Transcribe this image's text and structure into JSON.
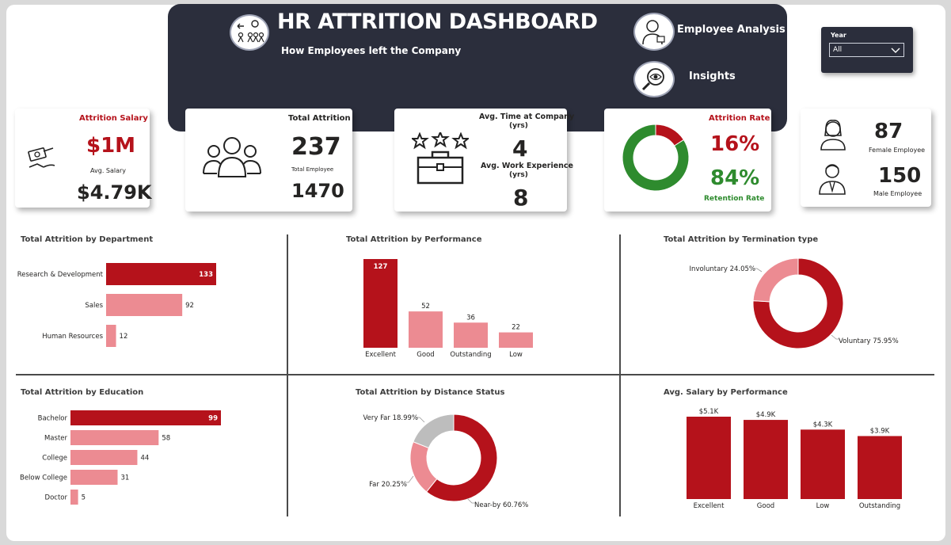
{
  "header": {
    "title": "HR ATTRITION DASHBOARD",
    "subtitle": "How  Employees left the Company",
    "nav_employee_analysis": "Employee Analysis",
    "nav_insights": "Insights"
  },
  "slicer": {
    "label": "Year",
    "value": "All"
  },
  "kpis": {
    "attrition_salary_label": "Attrition Salary",
    "attrition_salary_value": "$1M",
    "avg_salary_label": "Avg. Salary",
    "avg_salary_value": "$4.79K",
    "total_attrition_label": "Total Attrition",
    "total_attrition_value": "237",
    "total_employee_label": "Total Employee",
    "total_employee_value": "1470",
    "avg_time_label": "Avg. Time at Company",
    "avg_time_unit": "(yrs)",
    "avg_time_value": "4",
    "avg_work_exp_label": "Avg. Work Experience",
    "avg_work_exp_unit": "(yrs)",
    "avg_work_exp_value": "8",
    "attrition_rate_label": "Attrition Rate",
    "attrition_rate_value": "16%",
    "retention_rate_value": "84%",
    "retention_rate_label": "Retention Rate",
    "female_value": "87",
    "female_label": "Female Employee",
    "male_value": "150",
    "male_label": "Male Employee"
  },
  "colors": {
    "dark": "#2b2e3c",
    "red": "#b5121b",
    "pink": "#ec8b92",
    "grey": "#bdbdbd",
    "green": "#2e8b2e"
  },
  "chart_data": [
    {
      "id": "rate_donut",
      "type": "pie",
      "categories": [
        "Attrition",
        "Retention"
      ],
      "values": [
        16,
        84
      ]
    },
    {
      "id": "department",
      "type": "bar",
      "orientation": "horizontal",
      "title": "Total Attrition by Department",
      "categories": [
        "Research & Development",
        "Sales",
        "Human Resources"
      ],
      "values": [
        133,
        92,
        12
      ]
    },
    {
      "id": "performance",
      "type": "bar",
      "title": "Total Attrition by Performance",
      "categories": [
        "Excellent",
        "Good",
        "Outstanding",
        "Low"
      ],
      "values": [
        127,
        52,
        36,
        22
      ]
    },
    {
      "id": "termination",
      "type": "pie",
      "title": "Total Attrition by Termination type",
      "categories": [
        "Voluntary",
        "Involuntary"
      ],
      "values": [
        75.95,
        24.05
      ],
      "labels": [
        "Voluntary 75.95%",
        "Involuntary 24.05%"
      ]
    },
    {
      "id": "education",
      "type": "bar",
      "orientation": "horizontal",
      "title": "Total Attrition by Education",
      "categories": [
        "Bachelor",
        "Master",
        "College",
        "Below College",
        "Doctor"
      ],
      "values": [
        99,
        58,
        44,
        31,
        5
      ]
    },
    {
      "id": "distance",
      "type": "pie",
      "title": "Total Attrition by Distance Status",
      "categories": [
        "Near-by",
        "Far",
        "Very Far"
      ],
      "values": [
        60.76,
        20.25,
        18.99
      ],
      "labels": [
        "Near-by 60.76%",
        "Far 20.25%",
        "Very Far 18.99%"
      ]
    },
    {
      "id": "salary_perf",
      "type": "bar",
      "title": "Avg. Salary by Performance",
      "categories": [
        "Excellent",
        "Good",
        "Low",
        "Outstanding"
      ],
      "values": [
        5.1,
        4.9,
        4.3,
        3.9
      ],
      "labels": [
        "$5.1K",
        "$4.9K",
        "$4.3K",
        "$3.9K"
      ]
    }
  ]
}
